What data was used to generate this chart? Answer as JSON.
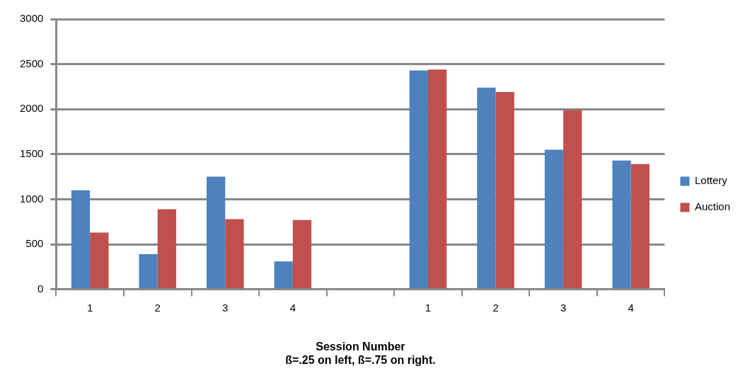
{
  "chart_data": {
    "type": "bar",
    "xlabel": "Session Number\nß=.25 on left, ß=.75 on right.",
    "categories": [
      "1",
      "2",
      "3",
      "4",
      null,
      "1",
      "2",
      "3",
      "4"
    ],
    "series": [
      {
        "name": "Lottery",
        "color": "#4f81bd",
        "values": [
          1100,
          390,
          1250,
          310,
          null,
          2430,
          2240,
          1550,
          1430
        ]
      },
      {
        "name": "Auction",
        "color": "#c0504d",
        "values": [
          630,
          890,
          780,
          770,
          null,
          2440,
          2190,
          1990,
          1390
        ]
      }
    ],
    "ylim": [
      0,
      3000
    ],
    "yticks": [
      0,
      500,
      1000,
      1500,
      2000,
      2500,
      3000
    ],
    "grid": "y",
    "legend": "right"
  }
}
